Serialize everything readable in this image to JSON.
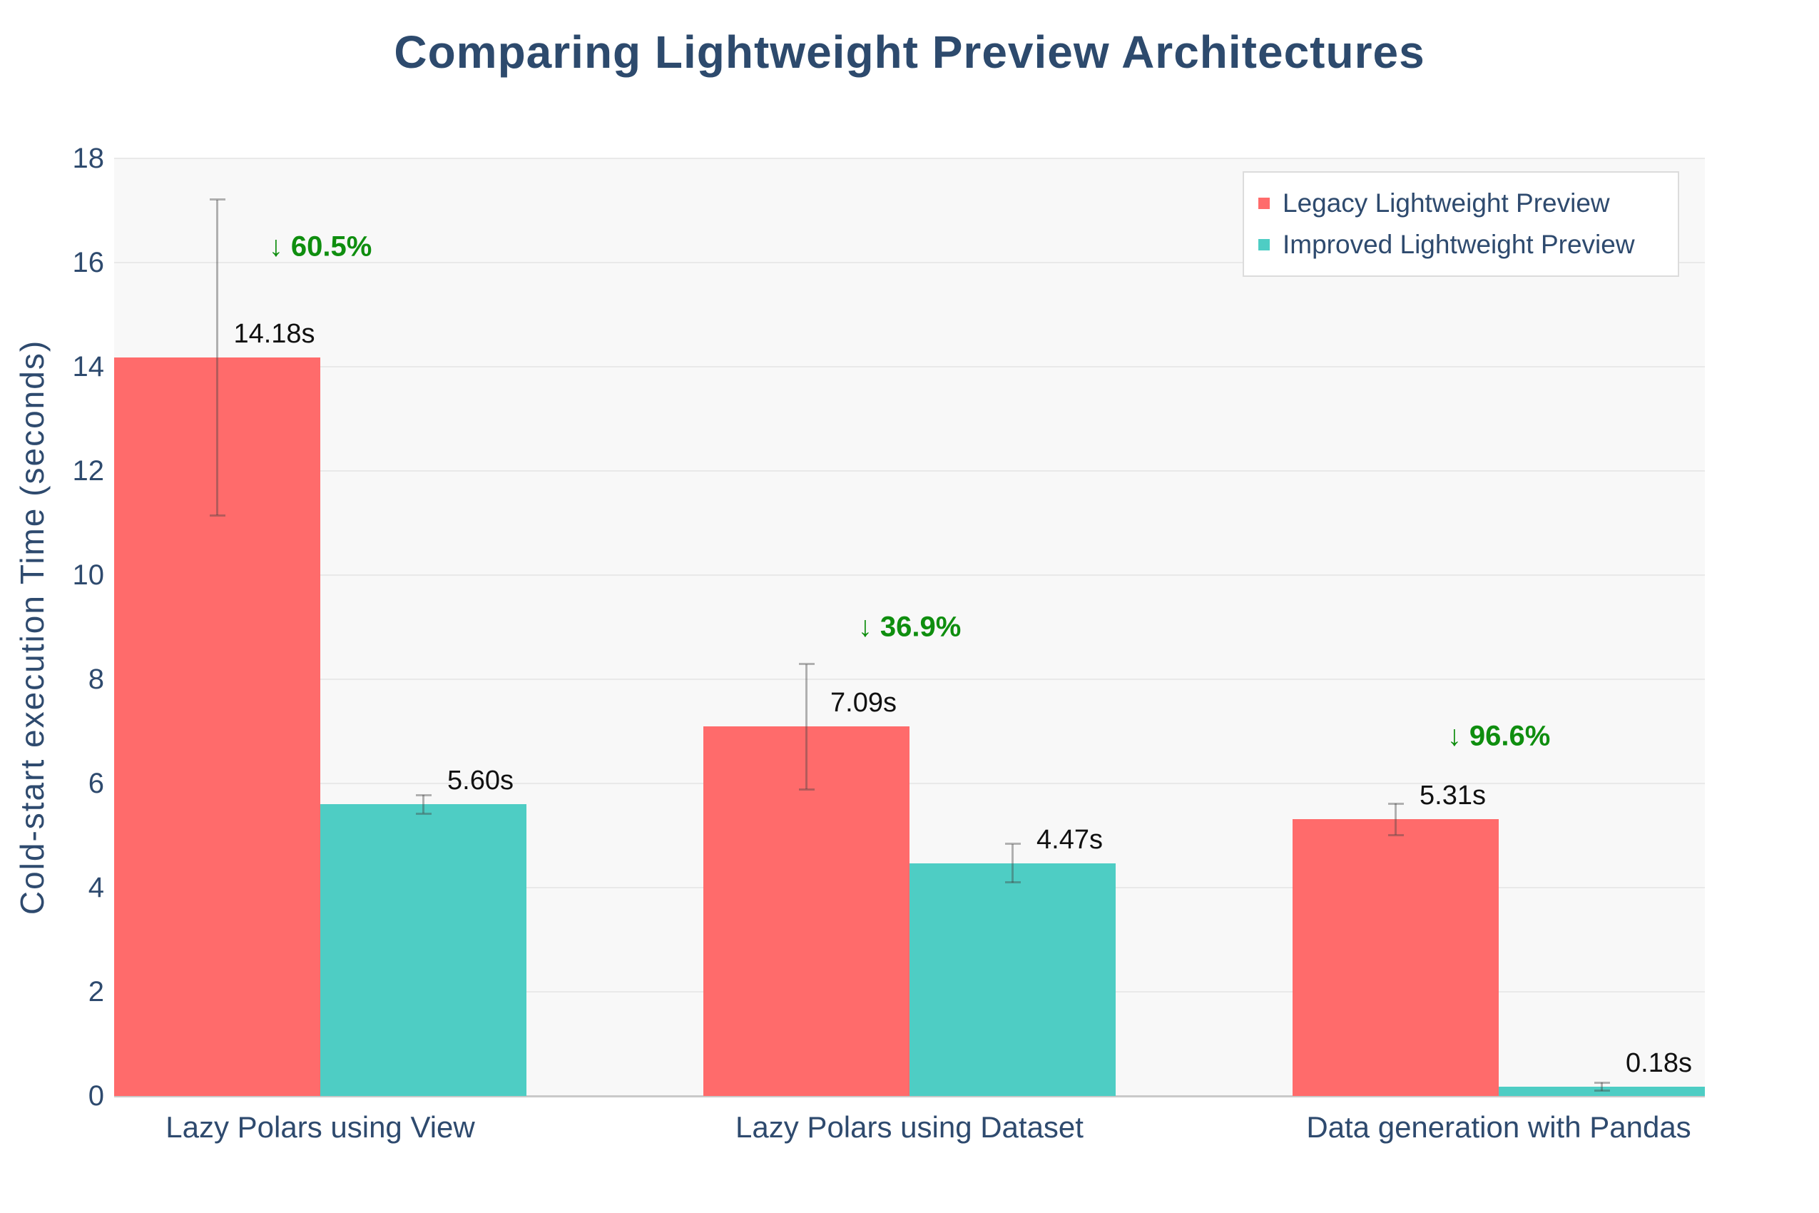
{
  "title": "Comparing Lightweight Preview Architectures",
  "chart_data": {
    "type": "bar",
    "title": "Comparing Lightweight Preview Architectures",
    "xlabel": "",
    "ylabel": "Cold-start execution Time (seconds)",
    "ylim": [
      0,
      18
    ],
    "ytick_step": 2,
    "ytick_labels": [
      "0",
      "2",
      "4",
      "6",
      "8",
      "10",
      "12",
      "14",
      "16",
      "18"
    ],
    "grid": true,
    "legend_position": "top-right",
    "categories": [
      "Lazy Polars using View",
      "Lazy Polars using Dataset",
      "Data generation with Pandas"
    ],
    "series": [
      {
        "name": "Legacy Lightweight Preview",
        "color": "#ff6b6b",
        "values": [
          14.18,
          7.09,
          5.31
        ],
        "value_labels": [
          "14.18s",
          "7.09s",
          "5.31s"
        ],
        "errors": [
          3.03,
          1.2,
          0.3
        ]
      },
      {
        "name": "Improved Lightweight Preview",
        "color": "#4ecdc4",
        "values": [
          5.6,
          4.47,
          0.18
        ],
        "value_labels": [
          "5.60s",
          "4.47s",
          "0.18s"
        ],
        "errors": [
          0.18,
          0.37,
          0.08
        ]
      }
    ],
    "annotations": [
      {
        "arrow": "↓",
        "text": "60.5%",
        "x_category": 0,
        "y": 16.3
      },
      {
        "arrow": "↓",
        "text": "36.9%",
        "x_category": 1,
        "y": 9.0
      },
      {
        "arrow": "↓",
        "text": "96.6%",
        "x_category": 2,
        "y": 6.9
      }
    ],
    "colors": {
      "plot_bg": "#f8f8f8",
      "grid": "#e9e9e9",
      "zero_line": "#c9c9c9",
      "axis_text": "#2e4a6e",
      "title_text": "#2d4a6d",
      "value_label": "#111111",
      "annotation_green": "#0f8e0f",
      "error_bar": "rgba(68,68,68,0.40)"
    }
  }
}
